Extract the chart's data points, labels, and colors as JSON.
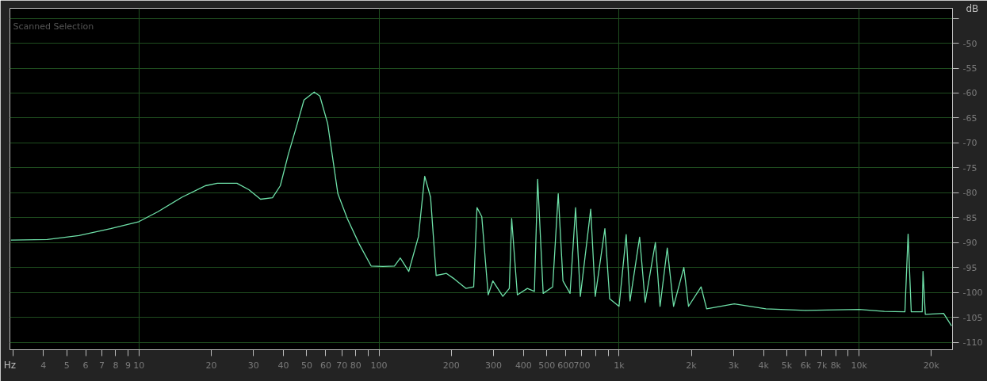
{
  "chart_data": {
    "type": "line",
    "xlabel": "Hz",
    "ylabel": "dB",
    "log": "x",
    "grid": true,
    "marker": "none",
    "line_style": "solid",
    "annotations": [
      "Scanned Selection"
    ],
    "xlim": [
      2.9,
      24500
    ],
    "ylim": [
      -111.5,
      -43
    ],
    "xticks": [
      {
        "value": 3,
        "label": null
      },
      4,
      5,
      6,
      7,
      8,
      9,
      10,
      20,
      30,
      40,
      50,
      60,
      70,
      80,
      {
        "value": 90,
        "label": null
      },
      100,
      200,
      300,
      400,
      500,
      600,
      700,
      {
        "value": 800,
        "label": null
      },
      {
        "value": 900,
        "label": null
      },
      {
        "value": 1000,
        "label": "1k"
      },
      {
        "value": 2000,
        "label": "2k"
      },
      {
        "value": 3000,
        "label": "3k"
      },
      {
        "value": 4000,
        "label": "4k"
      },
      {
        "value": 5000,
        "label": "5k"
      },
      {
        "value": 6000,
        "label": "6k"
      },
      {
        "value": 7000,
        "label": "7k"
      },
      {
        "value": 8000,
        "label": "8k"
      },
      {
        "value": 9000,
        "label": null
      },
      {
        "value": 10000,
        "label": "10k"
      },
      {
        "value": 20000,
        "label": "20k"
      }
    ],
    "yticks": [
      {
        "value": -45,
        "label": null
      },
      -50,
      -55,
      -60,
      -65,
      -70,
      -75,
      -80,
      -85,
      -90,
      -95,
      -100,
      -105,
      -110
    ],
    "series": [
      {
        "color": "#6ee0a8",
        "x": [
          2.93,
          4.15,
          5.62,
          7.62,
          10,
          12.0,
          15.1,
          18.9,
          21.2,
          25.6,
          28.7,
          32.1,
          36.0,
          38.8,
          41.9,
          45.2,
          48.7,
          53.7,
          56.7,
          61.1,
          67.4,
          73.8,
          82.7,
          92.7,
          103.8,
          116,
          122.7,
          133,
          146,
          155,
          164,
          173,
          191,
          206,
          230,
          248,
          256,
          268,
          285,
          298,
          328,
          349,
          357,
          377,
          415,
          444,
          458,
          483,
          529,
          558,
          584,
          625,
          659,
          690,
          762,
          796,
          873,
          914,
          1000,
          1071,
          1111,
          1218,
          1285,
          1417,
          1482,
          1588,
          1687,
          1862,
          1947,
          2197,
          2317,
          3020,
          4090,
          5970,
          10000,
          12740,
          15520,
          16000,
          16490,
          18320,
          18460,
          18870,
          22490,
          24270
        ],
        "values": [
          -89.5,
          -89.4,
          -88.6,
          -87.2,
          -85.8,
          -83.8,
          -80.9,
          -78.6,
          -78.1,
          -78.1,
          -79.4,
          -81.3,
          -81.0,
          -78.6,
          -72.3,
          -66.9,
          -61.4,
          -59.8,
          -60.6,
          -66.1,
          -80.2,
          -85.2,
          -90.3,
          -94.7,
          -94.8,
          -94.7,
          -93.1,
          -95.8,
          -88.8,
          -76.7,
          -80.9,
          -96.6,
          -96.2,
          -97.3,
          -99.2,
          -98.9,
          -83.0,
          -84.8,
          -100.5,
          -97.7,
          -100.8,
          -99.2,
          -85.2,
          -100.5,
          -99.2,
          -99.8,
          -77.3,
          -100.2,
          -98.9,
          -80.2,
          -97.7,
          -100.2,
          -83.0,
          -100.8,
          -83.3,
          -100.8,
          -87.2,
          -101.3,
          -102.8,
          -88.4,
          -101.7,
          -88.9,
          -102.0,
          -90.0,
          -102.8,
          -91.1,
          -102.8,
          -95.0,
          -102.8,
          -98.9,
          -103.3,
          -102.3,
          -103.3,
          -103.6,
          -103.4,
          -103.8,
          -103.9,
          -88.3,
          -103.9,
          -103.9,
          -95.8,
          -104.4,
          -104.2,
          -106.7
        ]
      }
    ]
  }
}
